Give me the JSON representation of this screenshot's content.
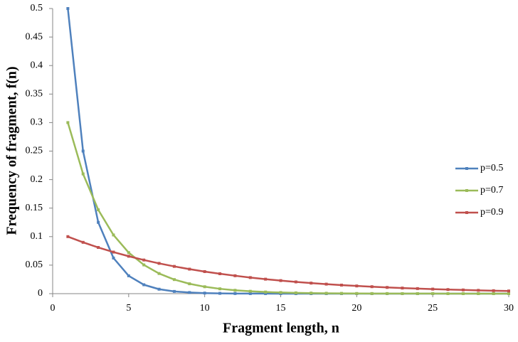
{
  "chart_data": {
    "type": "line",
    "x_label": "Fragment length, n",
    "y_label": "Frequency of fragment,  f(n)",
    "x": [
      1,
      2,
      3,
      4,
      5,
      6,
      7,
      8,
      9,
      10,
      11,
      12,
      13,
      14,
      15,
      16,
      17,
      18,
      19,
      20,
      21,
      22,
      23,
      24,
      25,
      26,
      27,
      28,
      29,
      30
    ],
    "series": [
      {
        "name": "p=0.5",
        "color": "#4f81bd",
        "values": [
          0.5,
          0.25,
          0.125,
          0.0625,
          0.0313,
          0.0156,
          0.0078,
          0.0039,
          0.002,
          0.001,
          0.0005,
          0.0002,
          0.0001,
          0.0001,
          0,
          0,
          0,
          0,
          0,
          0,
          0,
          0,
          0,
          0,
          0,
          0,
          0,
          0,
          0,
          0
        ]
      },
      {
        "name": "p=0.7",
        "color": "#9bbb59",
        "values": [
          0.3,
          0.21,
          0.147,
          0.1029,
          0.072,
          0.0504,
          0.0353,
          0.0247,
          0.0173,
          0.0121,
          0.0085,
          0.0059,
          0.0042,
          0.0029,
          0.002,
          0.0014,
          0.001,
          0.0007,
          0.0005,
          0.0003,
          0.0002,
          0.0002,
          0.0001,
          0.0001,
          0.0001,
          0,
          0,
          0,
          0,
          0
        ]
      },
      {
        "name": "p=0.9",
        "color": "#c0504d",
        "values": [
          0.1,
          0.09,
          0.081,
          0.0729,
          0.0656,
          0.059,
          0.0531,
          0.0478,
          0.043,
          0.0387,
          0.0349,
          0.0314,
          0.0282,
          0.0254,
          0.0229,
          0.0206,
          0.0185,
          0.0167,
          0.015,
          0.0135,
          0.0122,
          0.0109,
          0.0098,
          0.0089,
          0.008,
          0.0072,
          0.0065,
          0.0058,
          0.0052,
          0.0047
        ]
      }
    ],
    "xlim": [
      0,
      30
    ],
    "xticks": [
      0,
      5,
      10,
      15,
      20,
      25,
      30
    ],
    "ylim": [
      0,
      0.5
    ],
    "yticks": [
      0,
      0.05,
      0.1,
      0.15,
      0.2,
      0.25,
      0.3,
      0.35,
      0.4,
      0.45,
      0.5
    ],
    "grid": false,
    "legend": "right"
  }
}
